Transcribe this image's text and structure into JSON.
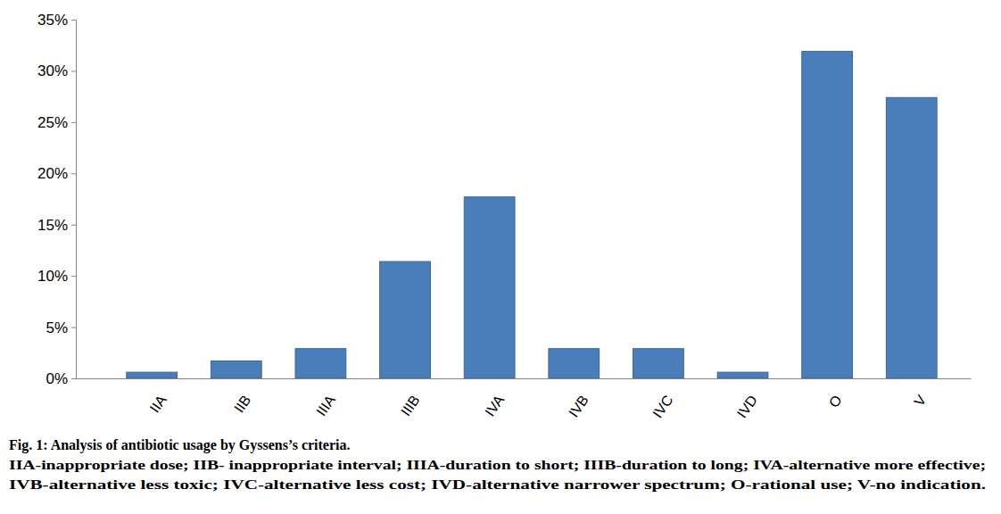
{
  "chart_data": {
    "type": "bar",
    "title": "Fig. 1: Analysis of antibiotic usage by Gyssens’s criteria.",
    "annotations": [
      "IIA-inappropriate dose; IIB- inappropriate interval; IIIA-duration to short; IIIB-duration to long; IVA-alternative more effective;",
      "IVB-alternative less toxic; IVC-alternative less cost; IVD-alternative narrower spectrum; O-rational use; V-no indication."
    ],
    "categories": [
      "IIA",
      "IIB",
      "IIIA",
      "IIIB",
      "IVA",
      "IVB",
      "IVC",
      "IVD",
      "O",
      "V"
    ],
    "values": [
      0.6,
      1.7,
      2.9,
      11.4,
      17.7,
      2.9,
      2.9,
      0.6,
      31.9,
      27.4
    ],
    "color": "#4a7ebb",
    "ylim": [
      0,
      35
    ],
    "yticks": [
      {
        "value": 0,
        "label": "0%"
      },
      {
        "value": 5,
        "label": "5%"
      },
      {
        "value": 10,
        "label": "10%"
      },
      {
        "value": 15,
        "label": "15%"
      },
      {
        "value": 20,
        "label": "20%"
      },
      {
        "value": 25,
        "label": "25%"
      },
      {
        "value": 30,
        "label": "30%"
      },
      {
        "value": 35,
        "label": "35%"
      }
    ],
    "grid": false
  }
}
